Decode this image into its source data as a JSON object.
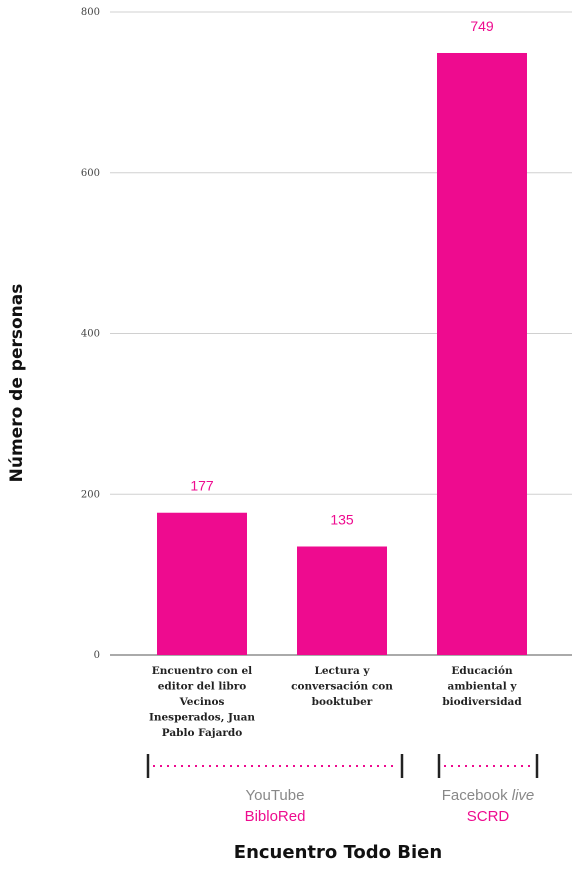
{
  "chart_data": {
    "type": "bar",
    "categories": [
      [
        "Encuentro con el",
        "editor del libro",
        "Vecinos",
        "Inesperados, Juan",
        "Pablo Fajardo"
      ],
      [
        "Lectura y",
        "conversación con",
        "booktuber"
      ],
      [
        "Educación",
        "ambiental y",
        "biodiversidad"
      ]
    ],
    "values": [
      177,
      135,
      749
    ],
    "value_labels": [
      "177",
      "135",
      "749"
    ],
    "ylabel": "Número de personas",
    "xlabel": "Encuentro Todo Bien",
    "ylim": [
      0,
      800
    ],
    "yticks": [
      "0",
      "200",
      "400",
      "600",
      "800"
    ],
    "grid": true,
    "bar_color": "#ee0b8f",
    "groups": [
      {
        "platform": "YouTube",
        "platform_suffix": "",
        "org": "BibloRed",
        "span": [
          0,
          1
        ]
      },
      {
        "platform": "Facebook ",
        "platform_suffix": "live",
        "org": "SCRD",
        "span": [
          2,
          2
        ]
      }
    ]
  }
}
